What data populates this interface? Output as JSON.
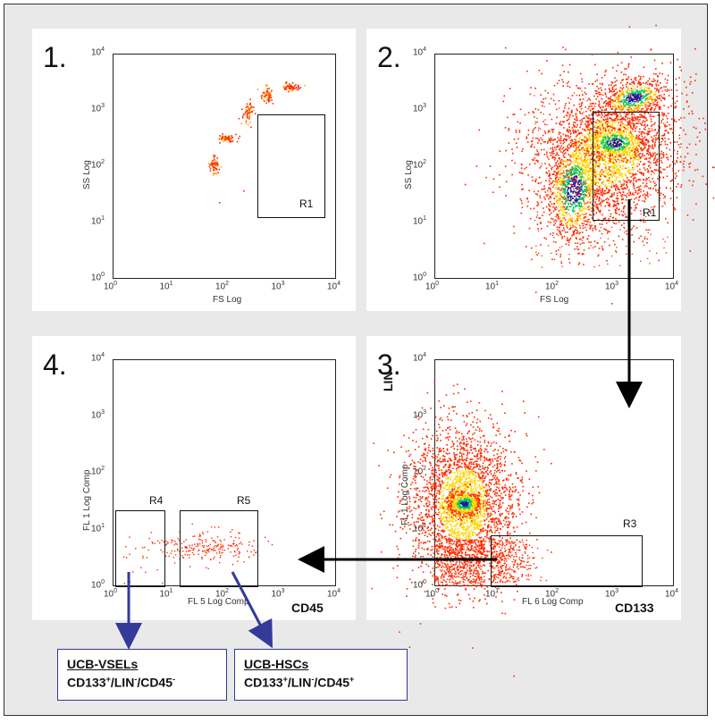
{
  "panels": [
    {
      "id": "1",
      "number": "1.",
      "xlabel": "FS Log",
      "ylabel": "SS Log",
      "axis_label_right": "",
      "axis_label_top": ""
    },
    {
      "id": "2",
      "number": "2.",
      "xlabel": "FS Log",
      "ylabel": "SS Log",
      "axis_label_right": "",
      "axis_label_top": ""
    },
    {
      "id": "3",
      "number": "3.",
      "xlabel": "FL 6 Log Comp",
      "ylabel": "FL 1 Log Comp",
      "axis_label_right": "CD133",
      "axis_label_top": "LIN"
    },
    {
      "id": "4",
      "number": "4.",
      "xlabel": "FL 5 Log Comp",
      "ylabel": "FL 1 Log Comp",
      "axis_label_right": "CD45",
      "axis_label_top": ""
    }
  ],
  "ticks": {
    "base": "10",
    "exponents": [
      "0",
      "1",
      "2",
      "3",
      "4"
    ]
  },
  "gates": {
    "r1_p1": "R1",
    "r1_p2": "R1",
    "r3": "R3",
    "r4": "R4",
    "r5": "R5"
  },
  "result_boxes": [
    {
      "title": "UCB-VSELs",
      "marker1": "CD133",
      "sign1": "+",
      "marker2": "/LIN",
      "sign2": "-",
      "marker3": "/CD45",
      "sign3": "-"
    },
    {
      "title": "UCB-HSCs",
      "marker1": "CD133",
      "sign1": "+",
      "marker2": "/LIN",
      "sign2": "-",
      "marker3": "/CD45",
      "sign3": "+"
    }
  ],
  "colors": {
    "arrow_black": "#000000",
    "arrow_blue": "#333a99",
    "density_low": "#ff2a00",
    "density_mid": "#ffd400",
    "density_high": "#00cc66",
    "density_core": "#1a1aa0"
  }
}
